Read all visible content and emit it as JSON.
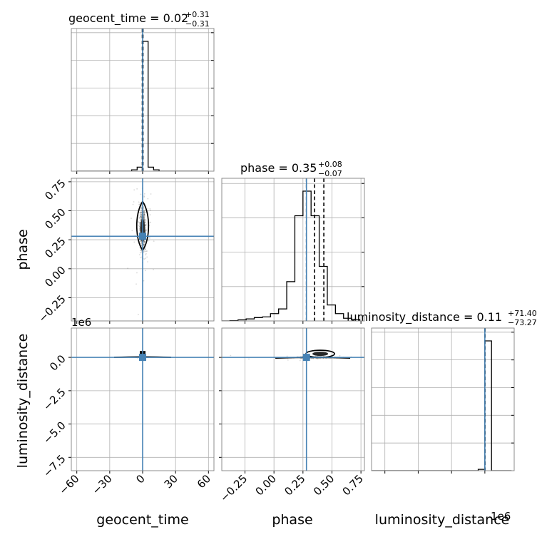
{
  "chart_data": {
    "type": "corner",
    "parameters": [
      "geocent_time",
      "phase",
      "luminosity_distance"
    ],
    "axis_labels": [
      "geocent_time",
      "phase",
      "luminosity_distance"
    ],
    "titles": [
      {
        "text": "geocent_time = 0.02",
        "plus": "+0.31",
        "minus": "−0.31"
      },
      {
        "text": "phase = 0.35",
        "plus": "+0.08",
        "minus": "−0.07"
      },
      {
        "text": "luminosity_distance = 0.11",
        "plus": "+71.40",
        "minus": "−73.27"
      }
    ],
    "axes": {
      "geocent_time": {
        "range": [
          -65,
          65
        ],
        "ticks": [
          -60,
          -30,
          0,
          30,
          60
        ],
        "tick_labels": [
          "−60",
          "−30",
          "0",
          "30",
          "60"
        ]
      },
      "phase": {
        "range": [
          -0.45,
          0.78
        ],
        "ticks": [
          -0.25,
          0.0,
          0.25,
          0.5,
          0.75
        ],
        "tick_labels": [
          "−0.25",
          "0.00",
          "0.25",
          "0.50",
          "0.75"
        ]
      },
      "luminosity_distance": {
        "range": [
          -8500000.0,
          2200000.0
        ],
        "ticks": [
          -7500000.0,
          -5000000.0,
          -2500000.0,
          0.0
        ],
        "tick_labels": [
          "−7.5",
          "−5.0",
          "−2.5",
          "0.0"
        ],
        "offset_text": "1e6"
      }
    },
    "truths": {
      "geocent_time": 0.0,
      "phase": 0.28,
      "luminosity_distance": 0.0
    },
    "quantiles": {
      "geocent_time": [
        -0.29,
        0.02,
        0.33
      ],
      "phase": [
        0.28,
        0.35,
        0.43
      ],
      "luminosity_distance": [
        -73.16,
        0.11,
        71.51
      ]
    },
    "histograms": {
      "geocent_time": {
        "edges": [
          -60,
          -55,
          -50,
          -45,
          -40,
          -35,
          -30,
          -25,
          -20,
          -15,
          -10,
          -5,
          0,
          5,
          10,
          15,
          20,
          25,
          30,
          35,
          40,
          45,
          50,
          55,
          60
        ],
        "counts": [
          0,
          0,
          0,
          0,
          0,
          0,
          0,
          0,
          0,
          0,
          0.01,
          0.03,
          0.97,
          0.03,
          0.01,
          0,
          0,
          0,
          0,
          0,
          0,
          0,
          0,
          0
        ]
      },
      "phase": {
        "edges": [
          -0.45,
          -0.38,
          -0.31,
          -0.24,
          -0.17,
          -0.1,
          -0.03,
          0.04,
          0.11,
          0.18,
          0.25,
          0.32,
          0.39,
          0.46,
          0.53,
          0.6,
          0.67,
          0.74
        ],
        "counts": [
          0,
          0.002,
          0.008,
          0.015,
          0.025,
          0.03,
          0.055,
          0.09,
          0.295,
          0.79,
          0.975,
          0.79,
          0.41,
          0.12,
          0.055,
          0.02,
          0.01
        ]
      },
      "luminosity_distance": {
        "edges": [
          -8500000.0,
          -8000000.0,
          -7500000.0,
          -7000000.0,
          -6500000.0,
          -6000000.0,
          -5500000.0,
          -5000000.0,
          -4500000.0,
          -4000000.0,
          -3500000.0,
          -3000000.0,
          -2500000.0,
          -2000000.0,
          -1500000.0,
          -1000000.0,
          -500000.0,
          0.0,
          500000.0,
          1000000.0,
          1500000.0,
          2000000.0
        ],
        "counts": [
          0,
          0,
          0,
          0,
          0,
          0,
          0,
          0,
          0,
          0,
          0,
          0,
          0,
          0,
          0,
          0,
          0.01,
          0.985,
          0,
          0,
          0
        ]
      }
    },
    "grid": true
  }
}
